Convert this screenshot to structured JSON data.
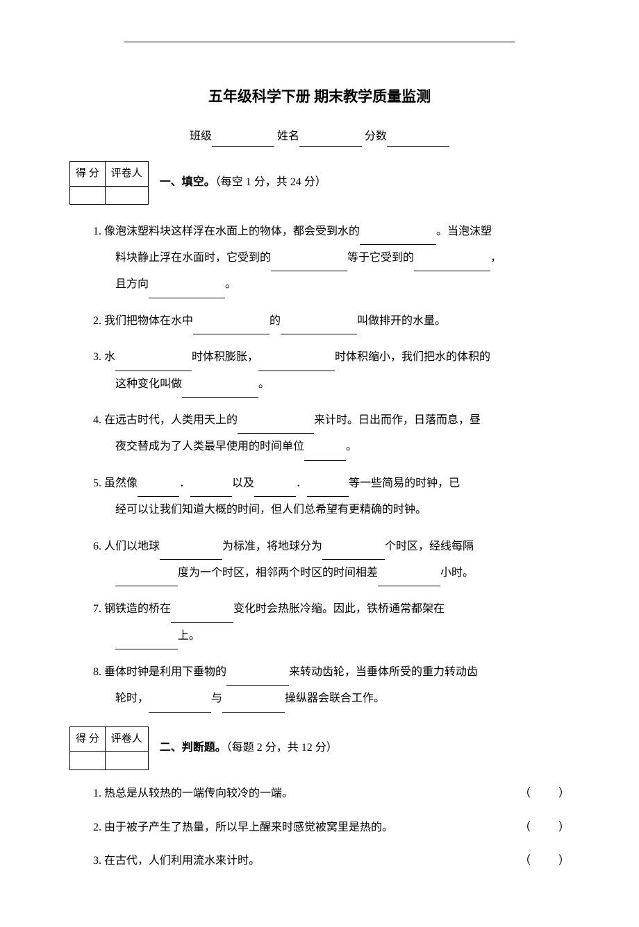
{
  "header": {
    "title": "五年级科学下册  期末教学质量监测",
    "class_label": "班级",
    "name_label": "姓名",
    "score_label": "分数"
  },
  "score_table": {
    "cell_score": "得  分",
    "cell_grader": "评卷人"
  },
  "section1": {
    "heading": "一、填空。",
    "note": "（每空 1 分，共 24 分）",
    "q1_a": "1. 像泡沫塑料块这样浮在水面上的物体，都会受到水的",
    "q1_b": "。当泡沫塑",
    "q1_c": "料块静止浮在水面时，它受到的",
    "q1_d": "等于它受到的",
    "q1_e": "，",
    "q1_f": "且方向",
    "q1_g": "。",
    "q2_a": "2. 我们把物体在水中",
    "q2_b": "的",
    "q2_c": "叫做排开的水量。",
    "q3_a": "3. 水",
    "q3_b": "时体积膨胀，",
    "q3_c": "时体积缩小，我们把水的体积的",
    "q3_d": "这种变化叫做",
    "q3_e": "。",
    "q4_a": "4. 在远古时代，人类用天上的",
    "q4_b": "来计时。日出而作，日落而息，昼",
    "q4_c": "夜交替成为了人类最早使用的时间单位",
    "q4_d": "。",
    "q5_a": "5. 虽然像",
    "q5_b": "．",
    "q5_c": "以及",
    "q5_d": "．",
    "q5_e": "等一些简易的时钟，已",
    "q5_f": "经可以让我们知道大概的时间，但人们总希望有更精确的时钟。",
    "q6_a": "6. 人们以地球",
    "q6_b": "为标准，将地球分为",
    "q6_c": "个时区，经线每隔",
    "q6_d": "度为一个时区，相邻两个时区的时间相差",
    "q6_e": "小时。",
    "q7_a": "7. 钢铁造的桥在",
    "q7_b": "变化时会热胀冷缩。因此，铁桥通常都架在",
    "q7_c": "上。",
    "q8_a": "8. 垂体时钟是利用下垂物的",
    "q8_b": "来转动齿轮，当垂体所受的重力转动齿",
    "q8_c": "轮时，",
    "q8_d": "与",
    "q8_e": "操纵器会联合工作。"
  },
  "section2": {
    "heading": "二、判断题。",
    "note": "（每题 2 分，共 12 分）",
    "q1": "1. 热总是从较热的一端传向较冷的一端。",
    "q2": "2. 由于被子产生了热量，所以早上醒来时感觉被窝里是热的。",
    "q3": "3. 在古代，人们利用流水来计时。",
    "paren_l": "（",
    "paren_r": "）"
  }
}
